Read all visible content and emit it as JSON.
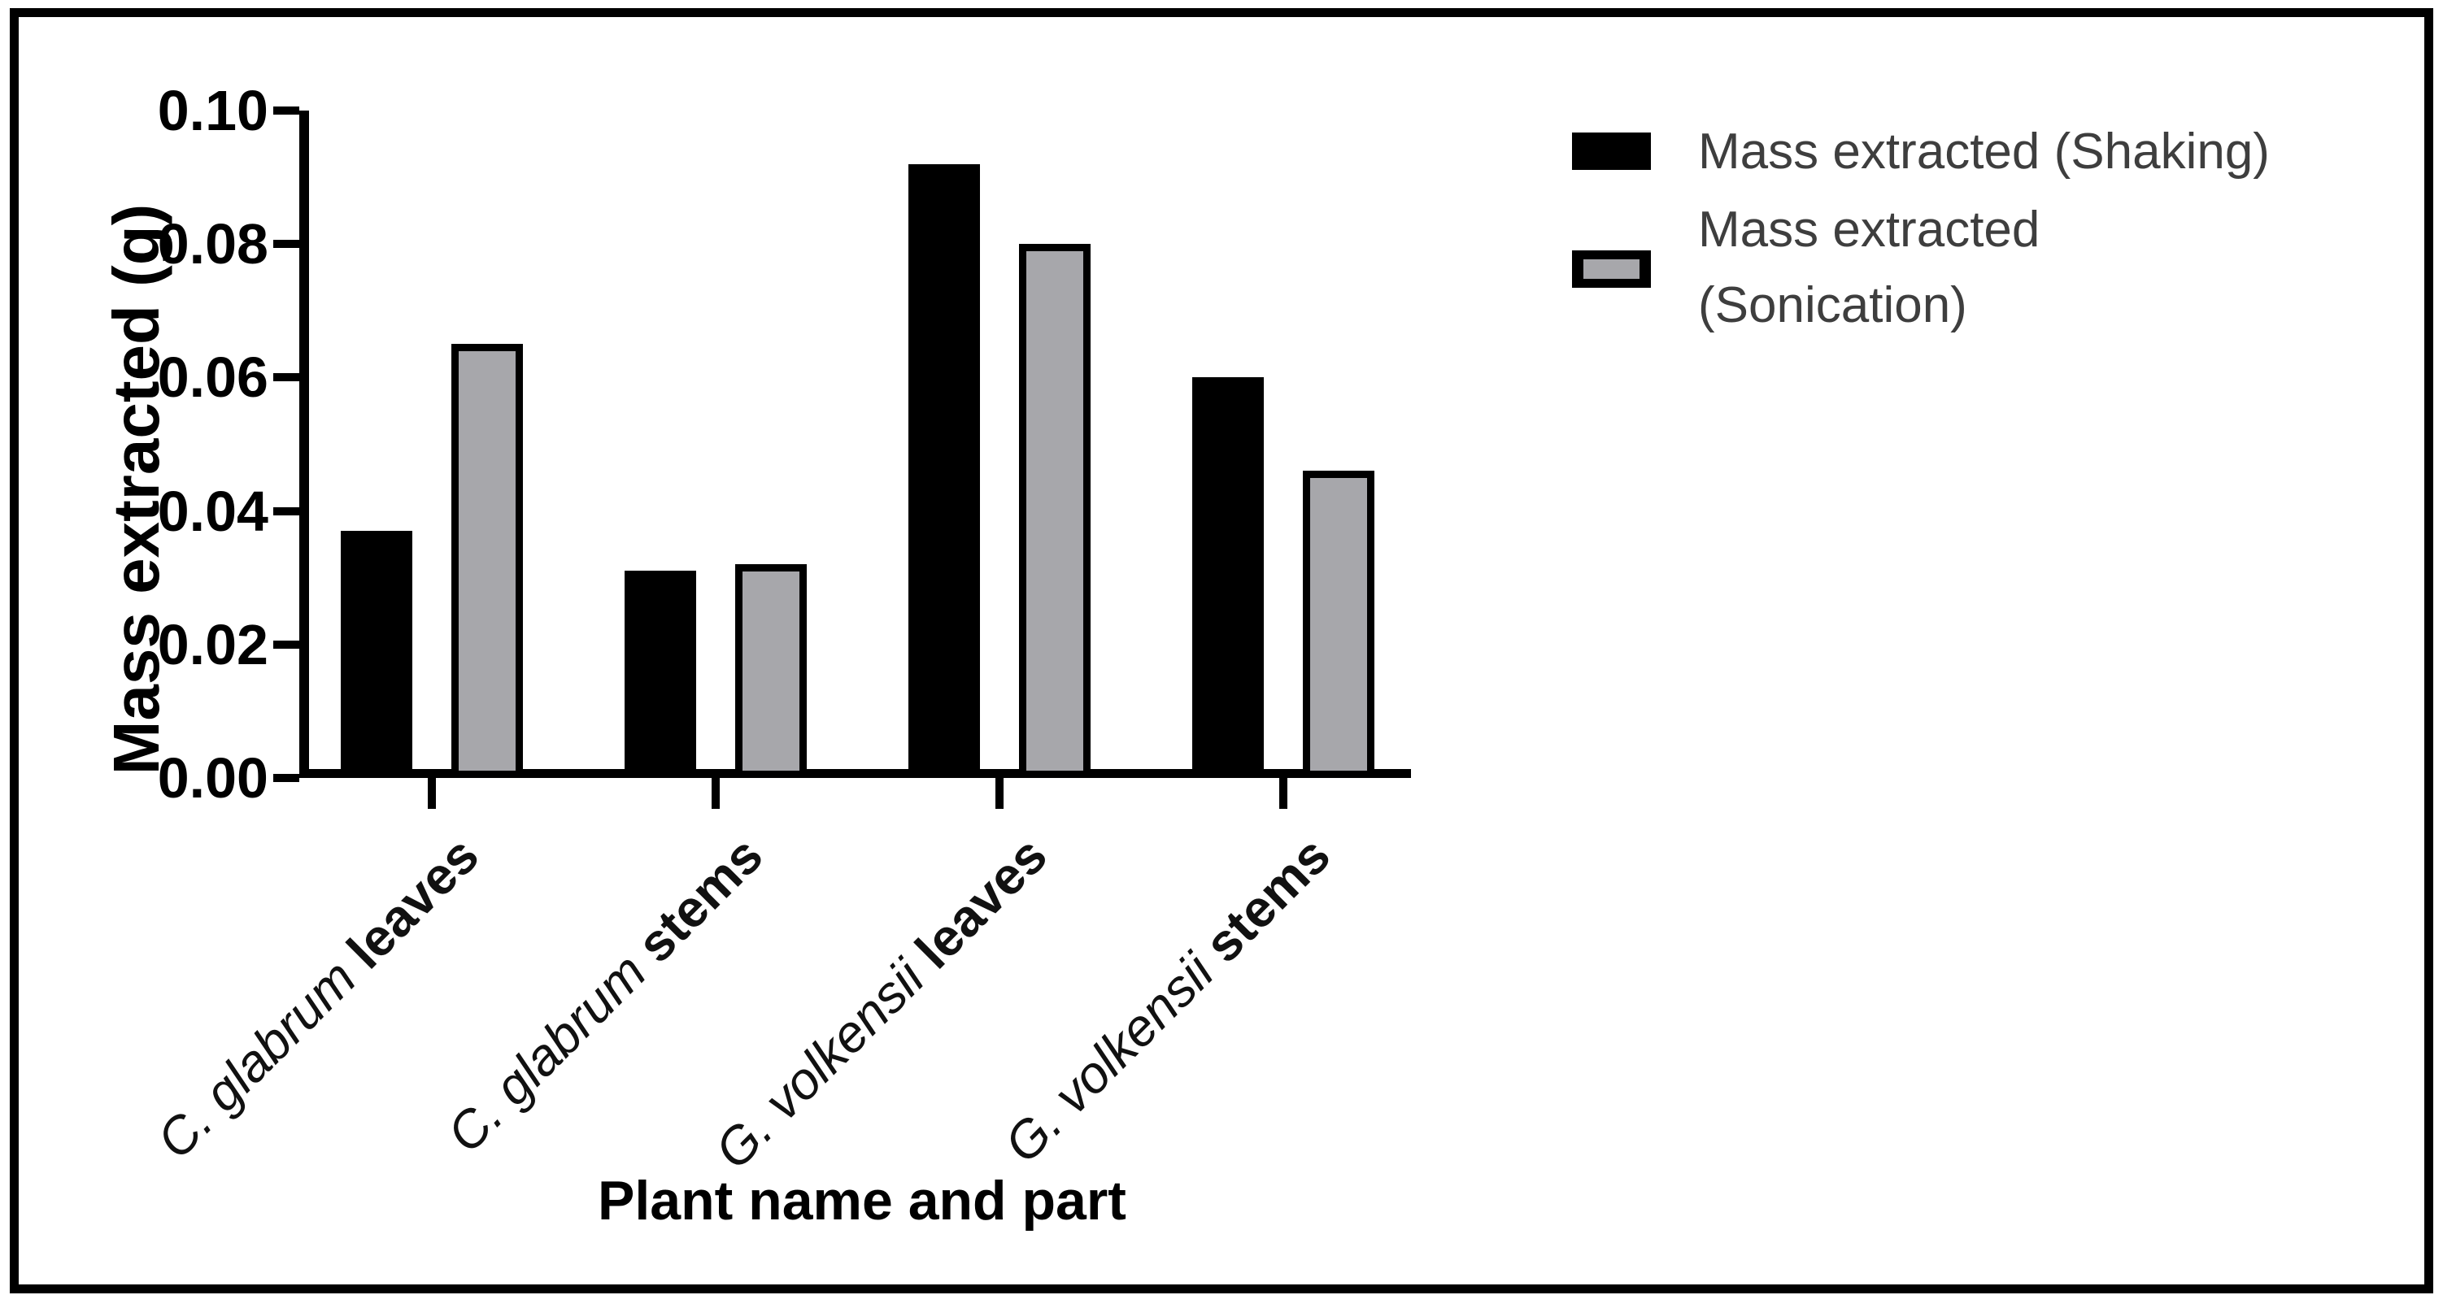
{
  "chart_data": {
    "type": "bar",
    "title": "",
    "xlabel": "Plant name and part",
    "ylabel": "Mass extracted (g)",
    "ylim": [
      0,
      0.1
    ],
    "ytick_labels": [
      "0.00",
      "0.02",
      "0.04",
      "0.06",
      "0.08",
      "0.10"
    ],
    "ytick_values": [
      0.0,
      0.02,
      0.04,
      0.06,
      0.08,
      0.1
    ],
    "grid": "off",
    "legend_position": "top-right",
    "categories": [
      {
        "species": "C. glabrum",
        "part": "leaves"
      },
      {
        "species": "C. glabrum",
        "part": "stems"
      },
      {
        "species": "G. volkensii",
        "part": "leaves"
      },
      {
        "species": "G. volkensii",
        "part": "stems"
      }
    ],
    "series": [
      {
        "name": "Mass extracted (Shaking)",
        "color": "#000000",
        "style": "solid",
        "values": [
          0.037,
          0.031,
          0.092,
          0.06
        ]
      },
      {
        "name": "Mass extracted (Sonication)",
        "color": "#a7a7ab",
        "style": "outlined",
        "values": [
          0.065,
          0.032,
          0.08,
          0.046
        ]
      }
    ]
  },
  "legend": {
    "items": [
      {
        "lines": [
          "Mass extracted (Shaking)"
        ],
        "swatch": "black-solid-square"
      },
      {
        "lines": [
          "Mass extracted",
          "(Sonication)"
        ],
        "swatch": "gray-square-black-border"
      }
    ]
  },
  "colors": {
    "bar_shaking": "#000000",
    "bar_sonication": "#a7a7ab",
    "bar_border": "#000000",
    "axis": "#000000",
    "legend_text": "#3e3e3e",
    "frame_border": "#000000",
    "background": "#ffffff"
  }
}
